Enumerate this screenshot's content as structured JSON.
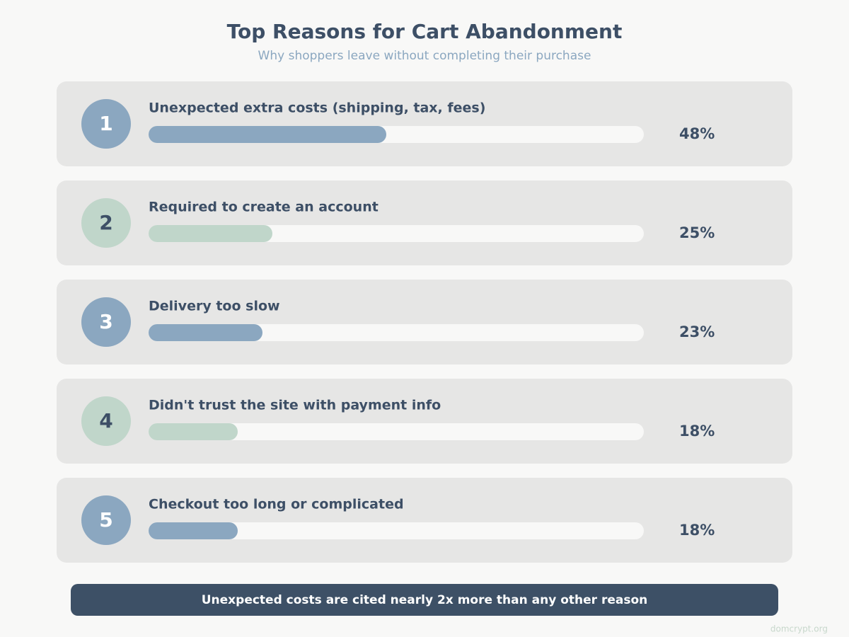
{
  "chart_data": {
    "type": "bar",
    "orientation": "horizontal",
    "title": "Top Reasons for Cart Abandonment",
    "subtitle": "Why shoppers leave without completing their purchase",
    "ranks": [
      1,
      2,
      3,
      4,
      5
    ],
    "categories": [
      "Unexpected extra costs (shipping, tax, fees)",
      "Required to create an account",
      "Delivery too slow",
      "Didn't trust the site with payment info",
      "Checkout too long or complicated"
    ],
    "values": [
      48,
      25,
      23,
      18,
      18
    ],
    "value_labels": [
      "48%",
      "25%",
      "23%",
      "18%",
      "18%"
    ],
    "colors": [
      "#8ba7c0",
      "#c0d6ca",
      "#8ba7c0",
      "#c0d6ca",
      "#8ba7c0"
    ],
    "xlim": [
      0,
      100
    ],
    "annotation": "Unexpected costs are cited nearly 2x more than any other reason",
    "watermark": "domcrypt.org"
  }
}
